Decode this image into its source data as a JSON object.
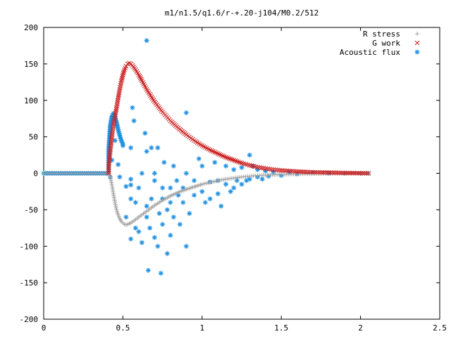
{
  "chart_data": {
    "type": "scatter",
    "title": "m1/n1.5/q1.6/r-+.20-j104/M0.2/512",
    "xlabel": "",
    "ylabel": "",
    "xlim": [
      0,
      2.5
    ],
    "ylim": [
      -200,
      200
    ],
    "x_ticks": [
      0,
      0.5,
      1,
      1.5,
      2,
      2.5
    ],
    "x_tick_labels": [
      "0",
      "0.5",
      "1",
      "1.5",
      "2",
      "2.5"
    ],
    "y_ticks": [
      -200,
      -150,
      -100,
      -50,
      0,
      50,
      100,
      150,
      200
    ],
    "y_tick_labels": [
      "-200",
      "-150",
      "-100",
      "-50",
      "0",
      "50",
      "100",
      "150",
      "200"
    ],
    "grid": false,
    "legend_position": "top-right",
    "series": [
      {
        "name": "R stress",
        "marker": "plus",
        "color": "#a0a0a0",
        "points": [
          [
            0,
            0
          ],
          [
            0.2,
            0
          ],
          [
            0.41,
            0
          ],
          [
            0.42,
            -5
          ],
          [
            0.43,
            -15
          ],
          [
            0.44,
            -28
          ],
          [
            0.45,
            -40
          ],
          [
            0.46,
            -50
          ],
          [
            0.47,
            -57
          ],
          [
            0.48,
            -62
          ],
          [
            0.49,
            -66
          ],
          [
            0.5,
            -68
          ],
          [
            0.51,
            -70
          ],
          [
            0.52,
            -70.5
          ],
          [
            0.53,
            -70
          ],
          [
            0.55,
            -68
          ],
          [
            0.57,
            -65
          ],
          [
            0.6,
            -60
          ],
          [
            0.65,
            -52
          ],
          [
            0.7,
            -44
          ],
          [
            0.75,
            -37
          ],
          [
            0.8,
            -31
          ],
          [
            0.85,
            -26
          ],
          [
            0.9,
            -22
          ],
          [
            0.95,
            -18.5
          ],
          [
            1.0,
            -15
          ],
          [
            1.05,
            -12.5
          ],
          [
            1.1,
            -10
          ],
          [
            1.15,
            -8
          ],
          [
            1.2,
            -6.5
          ],
          [
            1.25,
            -5
          ],
          [
            1.3,
            -4
          ],
          [
            1.35,
            -3
          ],
          [
            1.4,
            -2.5
          ],
          [
            1.5,
            -1.5
          ],
          [
            1.6,
            -1
          ],
          [
            1.7,
            -0.5
          ],
          [
            1.8,
            -0.3
          ],
          [
            1.9,
            -0.2
          ],
          [
            2.0,
            -0.1
          ],
          [
            2.05,
            0
          ]
        ]
      },
      {
        "name": "G work",
        "marker": "cross",
        "color": "#cc2222",
        "points": [
          [
            0.41,
            0
          ],
          [
            0.41,
            10
          ],
          [
            0.415,
            20
          ],
          [
            0.42,
            30
          ],
          [
            0.425,
            40
          ],
          [
            0.43,
            50
          ],
          [
            0.435,
            58
          ],
          [
            0.44,
            66
          ],
          [
            0.45,
            78
          ],
          [
            0.46,
            90
          ],
          [
            0.47,
            103
          ],
          [
            0.48,
            115
          ],
          [
            0.49,
            126
          ],
          [
            0.5,
            135
          ],
          [
            0.51,
            142
          ],
          [
            0.52,
            147
          ],
          [
            0.53,
            150
          ],
          [
            0.54,
            151
          ],
          [
            0.55,
            150
          ],
          [
            0.56,
            148
          ],
          [
            0.58,
            142
          ],
          [
            0.6,
            135
          ],
          [
            0.62,
            127
          ],
          [
            0.65,
            115
          ],
          [
            0.7,
            98
          ],
          [
            0.75,
            84
          ],
          [
            0.8,
            72
          ],
          [
            0.85,
            62
          ],
          [
            0.9,
            53
          ],
          [
            0.95,
            45
          ],
          [
            1.0,
            38
          ],
          [
            1.05,
            32
          ],
          [
            1.1,
            27
          ],
          [
            1.15,
            22
          ],
          [
            1.2,
            18
          ],
          [
            1.25,
            14
          ],
          [
            1.3,
            11
          ],
          [
            1.35,
            8.5
          ],
          [
            1.4,
            6.5
          ],
          [
            1.45,
            5
          ],
          [
            1.5,
            4
          ],
          [
            1.6,
            2.5
          ],
          [
            1.7,
            1.5
          ],
          [
            1.8,
            1
          ],
          [
            1.9,
            0.5
          ],
          [
            2.0,
            0.2
          ],
          [
            2.05,
            0
          ]
        ]
      },
      {
        "name": "Acoustic flux",
        "marker": "star",
        "color": "#1e8fe0",
        "curve_points": [
          [
            0,
            0
          ],
          [
            0.41,
            0
          ],
          [
            0.41,
            32
          ],
          [
            0.42,
            65
          ],
          [
            0.43,
            78
          ],
          [
            0.44,
            82
          ],
          [
            0.45,
            78
          ],
          [
            0.46,
            70
          ],
          [
            0.47,
            60
          ],
          [
            0.48,
            52
          ],
          [
            0.49,
            45
          ],
          [
            0.5,
            40
          ]
        ],
        "scatter_points": [
          [
            0.42,
            -5
          ],
          [
            0.43,
            18
          ],
          [
            0.45,
            45
          ],
          [
            0.47,
            12
          ],
          [
            0.48,
            -5
          ],
          [
            0.5,
            38
          ],
          [
            0.52,
            -18
          ],
          [
            0.52,
            -60
          ],
          [
            0.55,
            -90
          ],
          [
            0.55,
            -35
          ],
          [
            0.55,
            35
          ],
          [
            0.55,
            -16
          ],
          [
            0.55,
            -8
          ],
          [
            0.56,
            90
          ],
          [
            0.57,
            72
          ],
          [
            0.58,
            -75
          ],
          [
            0.58,
            -40
          ],
          [
            0.6,
            -20
          ],
          [
            0.6,
            -80
          ],
          [
            0.62,
            -95
          ],
          [
            0.62,
            0
          ],
          [
            0.64,
            55
          ],
          [
            0.65,
            182
          ],
          [
            0.65,
            -45
          ],
          [
            0.65,
            30
          ],
          [
            0.65,
            -60
          ],
          [
            0.66,
            -133
          ],
          [
            0.67,
            -75
          ],
          [
            0.68,
            35
          ],
          [
            0.68,
            -35
          ],
          [
            0.7,
            0
          ],
          [
            0.7,
            -88
          ],
          [
            0.7,
            -10
          ],
          [
            0.72,
            -100
          ],
          [
            0.72,
            35
          ],
          [
            0.73,
            -55
          ],
          [
            0.74,
            -137
          ],
          [
            0.75,
            -70
          ],
          [
            0.75,
            -35
          ],
          [
            0.75,
            -20
          ],
          [
            0.76,
            15
          ],
          [
            0.78,
            -110
          ],
          [
            0.78,
            -50
          ],
          [
            0.8,
            -40
          ],
          [
            0.8,
            -85
          ],
          [
            0.8,
            -20
          ],
          [
            0.82,
            -60
          ],
          [
            0.82,
            10
          ],
          [
            0.84,
            -10
          ],
          [
            0.85,
            -30
          ],
          [
            0.86,
            -70
          ],
          [
            0.88,
            -20
          ],
          [
            0.88,
            -40
          ],
          [
            0.9,
            83
          ],
          [
            0.9,
            -100
          ],
          [
            0.9,
            0
          ],
          [
            0.92,
            -55
          ],
          [
            0.95,
            -10
          ],
          [
            0.95,
            -30
          ],
          [
            0.98,
            20
          ],
          [
            1.0,
            -25
          ],
          [
            1.0,
            10
          ],
          [
            1.02,
            -40
          ],
          [
            1.05,
            -12
          ],
          [
            1.05,
            -35
          ],
          [
            1.08,
            15
          ],
          [
            1.1,
            -10
          ],
          [
            1.1,
            -28
          ],
          [
            1.12,
            -45
          ],
          [
            1.15,
            10
          ],
          [
            1.15,
            -15
          ],
          [
            1.18,
            -25
          ],
          [
            1.2,
            5
          ],
          [
            1.2,
            -20
          ],
          [
            1.22,
            -10
          ],
          [
            1.25,
            8
          ],
          [
            1.25,
            -15
          ],
          [
            1.28,
            -10
          ],
          [
            1.3,
            25
          ],
          [
            1.3,
            -8
          ],
          [
            1.32,
            10
          ],
          [
            1.35,
            -5
          ],
          [
            1.35,
            5
          ],
          [
            1.38,
            -8
          ],
          [
            1.4,
            3
          ],
          [
            1.42,
            -4
          ],
          [
            1.45,
            2
          ],
          [
            1.5,
            -3
          ],
          [
            1.55,
            2
          ],
          [
            1.6,
            -1
          ],
          [
            1.7,
            1
          ],
          [
            1.8,
            0
          ],
          [
            1.9,
            0
          ],
          [
            2.0,
            0
          ],
          [
            2.05,
            0
          ]
        ]
      }
    ]
  }
}
